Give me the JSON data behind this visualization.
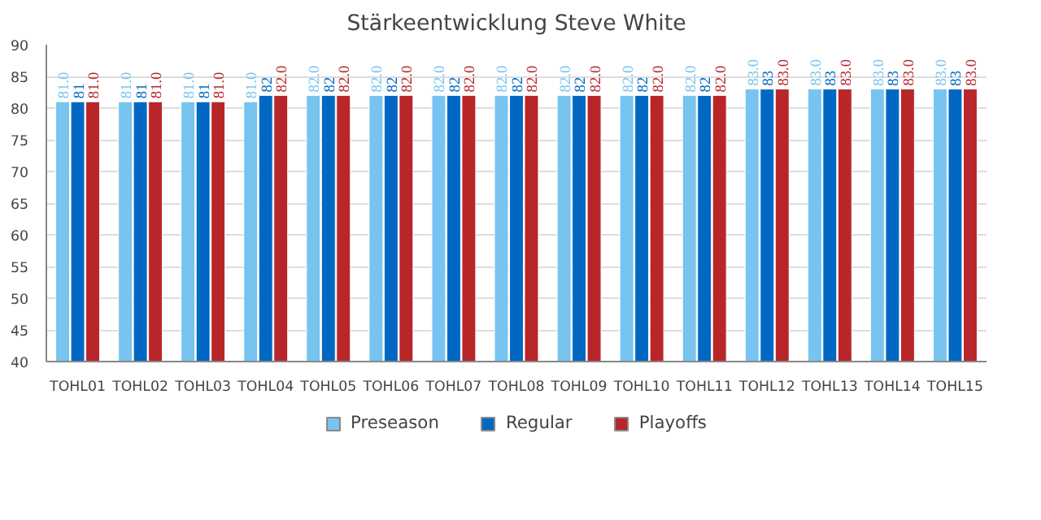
{
  "chart_data": {
    "type": "bar",
    "title": "Stärkeentwicklung Steve White",
    "categories": [
      "TOHL01",
      "TOHL02",
      "TOHL03",
      "TOHL04",
      "TOHL05",
      "TOHL06",
      "TOHL07",
      "TOHL08",
      "TOHL09",
      "TOHL10",
      "TOHL11",
      "TOHL12",
      "TOHL13",
      "TOHL14",
      "TOHL15"
    ],
    "series": [
      {
        "name": "Preseason",
        "color": "#76c4ef",
        "values": [
          81,
          81,
          81,
          81,
          82,
          82,
          82,
          82,
          82,
          82,
          82,
          83,
          83,
          83,
          83
        ],
        "value_labels": [
          "81.0",
          "81.0",
          "81.0",
          "81.0",
          "82.0",
          "82.0",
          "82.0",
          "82.0",
          "82.0",
          "82.0",
          "82.0",
          "83.0",
          "83.0",
          "83.0",
          "83.0"
        ]
      },
      {
        "name": "Regular",
        "color": "#0068c3",
        "values": [
          81,
          81,
          81,
          82,
          82,
          82,
          82,
          82,
          82,
          82,
          82,
          83,
          83,
          83,
          83
        ],
        "value_labels": [
          "81",
          "81",
          "81",
          "82",
          "82",
          "82",
          "82",
          "82",
          "82",
          "82",
          "82",
          "83",
          "83",
          "83",
          "83"
        ]
      },
      {
        "name": "Playoffs",
        "color": "#b8262a",
        "values": [
          81,
          81,
          81,
          82,
          82,
          82,
          82,
          82,
          82,
          82,
          82,
          83,
          83,
          83,
          83
        ],
        "value_labels": [
          "81.0",
          "81.0",
          "81.0",
          "82.0",
          "82.0",
          "82.0",
          "82.0",
          "82.0",
          "82.0",
          "82.0",
          "82.0",
          "83.0",
          "83.0",
          "83.0",
          "83.0"
        ]
      }
    ],
    "ylim": [
      40,
      90
    ],
    "yticks": [
      40,
      45,
      50,
      55,
      60,
      65,
      70,
      75,
      80,
      85,
      90
    ],
    "grid": "y",
    "legend": "bottom"
  }
}
